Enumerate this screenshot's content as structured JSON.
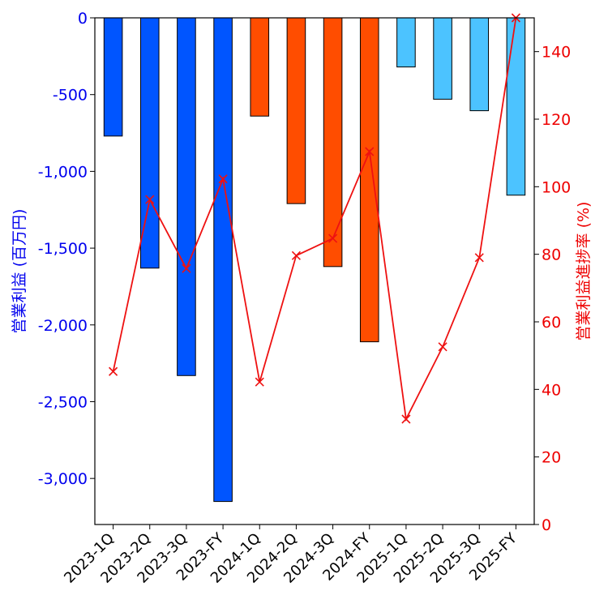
{
  "chart_data": {
    "type": "bar",
    "categories": [
      "2023-1Q",
      "2023-2Q",
      "2023-3Q",
      "2023-FY",
      "2024-1Q",
      "2024-2Q",
      "2024-3Q",
      "2024-FY",
      "2025-1Q",
      "2025-2Q",
      "2025-3Q",
      "2025-FY"
    ],
    "series": [
      {
        "name": "営業利益",
        "axis": "left",
        "values": [
          -770,
          -1630,
          -2330,
          -3150,
          -640,
          -1210,
          -1620,
          -2110,
          -320,
          -530,
          -605,
          -1155
        ],
        "colors": [
          "#0055ff",
          "#0055ff",
          "#0055ff",
          "#0055ff",
          "#ff4d00",
          "#ff4d00",
          "#ff4d00",
          "#ff4d00",
          "#4cc3ff",
          "#4cc3ff",
          "#4cc3ff",
          "#4cc3ff"
        ]
      },
      {
        "name": "営業利益進捗率",
        "type": "line",
        "axis": "right",
        "marker": "x",
        "color": "#ee1111",
        "values": [
          45.3,
          96.2,
          75.8,
          102.3,
          42.2,
          79.6,
          84.7,
          110.4,
          31.2,
          52.6,
          79.0,
          150.0
        ]
      }
    ],
    "ylabel_left": "営業利益 (百万円)",
    "ylabel_right": "営業利益進捗率 (%)",
    "ylim_left": [
      -3300,
      0
    ],
    "ylim_right": [
      0,
      150
    ],
    "yticks_left": [
      0,
      -500,
      -1000,
      -1500,
      -2000,
      -2500,
      -3000
    ],
    "yticks_left_labels": [
      "0",
      "-500",
      "-1,000",
      "-1,500",
      "-2,000",
      "-2,500",
      "-3,000"
    ],
    "yticks_right": [
      0,
      20,
      40,
      60,
      80,
      100,
      120,
      140
    ],
    "yticks_right_labels": [
      "0",
      "20",
      "40",
      "60",
      "80",
      "100",
      "120",
      "140"
    ],
    "left_axis_color": "#0000ee",
    "right_axis_color": "#ee0000",
    "grid": false,
    "legend": "none"
  }
}
